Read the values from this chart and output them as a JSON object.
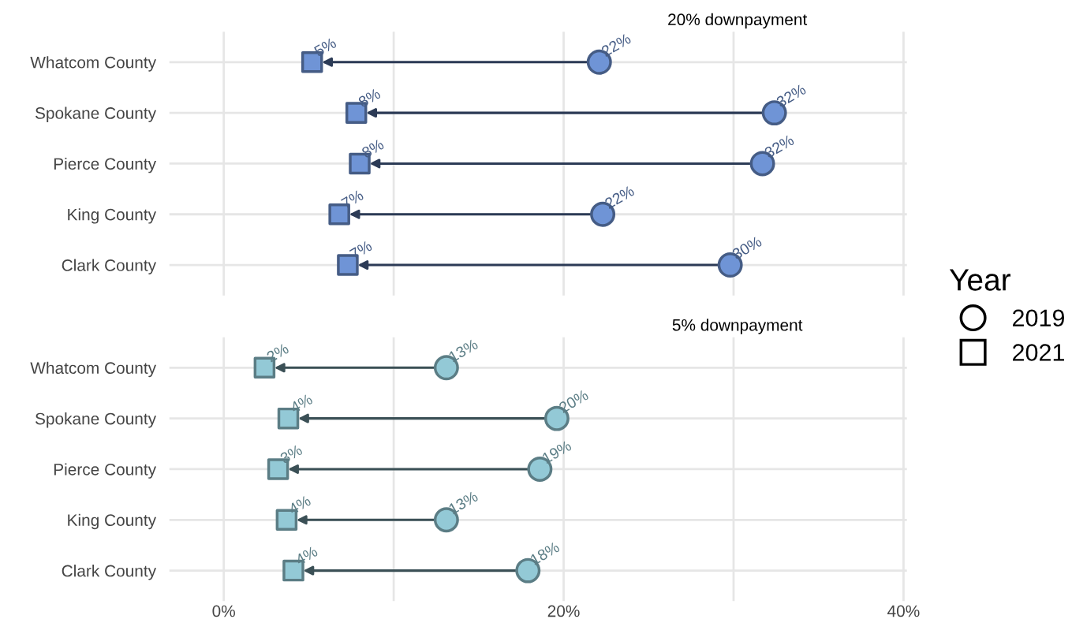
{
  "chart_data": [
    {
      "type": "scatter",
      "title": "20% downpayment",
      "categories": [
        "Whatcom County",
        "Spokane County",
        "Pierce County",
        "King County",
        "Clark County"
      ],
      "orientation": "horizontal",
      "series": [
        {
          "name": "2019",
          "color": "#6f94d6",
          "marker": "circle",
          "values": [
            22.1,
            32.4,
            31.7,
            22.3,
            29.8
          ],
          "value_labels": [
            "22%",
            "32%",
            "32%",
            "22%",
            "30%"
          ]
        },
        {
          "name": "2021",
          "color": "#6f94d6",
          "marker": "square",
          "values": [
            5.2,
            7.8,
            8.0,
            6.8,
            7.3
          ],
          "value_labels": [
            "5%",
            "8%",
            "8%",
            "7%",
            "7%"
          ]
        }
      ],
      "xlim": [
        -3.2,
        40.2
      ],
      "xticks": [
        {
          "value": 0,
          "label": null
        },
        {
          "value": 10,
          "label": null
        },
        {
          "value": 20,
          "label": null
        },
        {
          "value": 30,
          "label": null
        },
        {
          "value": 40,
          "label": null
        }
      ],
      "tick_labels": "y",
      "grid": true,
      "legend": "right",
      "legend_title": "Year"
    },
    {
      "type": "scatter",
      "title": "5% downpayment",
      "categories": [
        "Whatcom County",
        "Spokane County",
        "Pierce County",
        "King County",
        "Clark County"
      ],
      "orientation": "horizontal",
      "series": [
        {
          "color": "#93c9d6",
          "marker": "circle",
          "values": [
            13.1,
            19.6,
            18.6,
            13.1,
            17.9
          ],
          "value_labels": [
            "13%",
            "20%",
            "19%",
            "13%",
            "18%"
          ]
        },
        {
          "color": "#93c9d6",
          "marker": "square",
          "values": [
            2.4,
            3.8,
            3.2,
            3.7,
            4.1
          ],
          "value_labels": [
            "2%",
            "4%",
            "3%",
            "4%",
            "4%"
          ]
        }
      ],
      "xlim": [
        -3.2,
        40.2
      ],
      "xticks": [
        {
          "value": 0,
          "label": "0%"
        },
        {
          "value": 10,
          "label": null
        },
        {
          "value": 20,
          "label": "20%"
        },
        {
          "value": 30,
          "label": null
        },
        {
          "value": 40,
          "label": "40%"
        }
      ],
      "grid": true
    }
  ]
}
